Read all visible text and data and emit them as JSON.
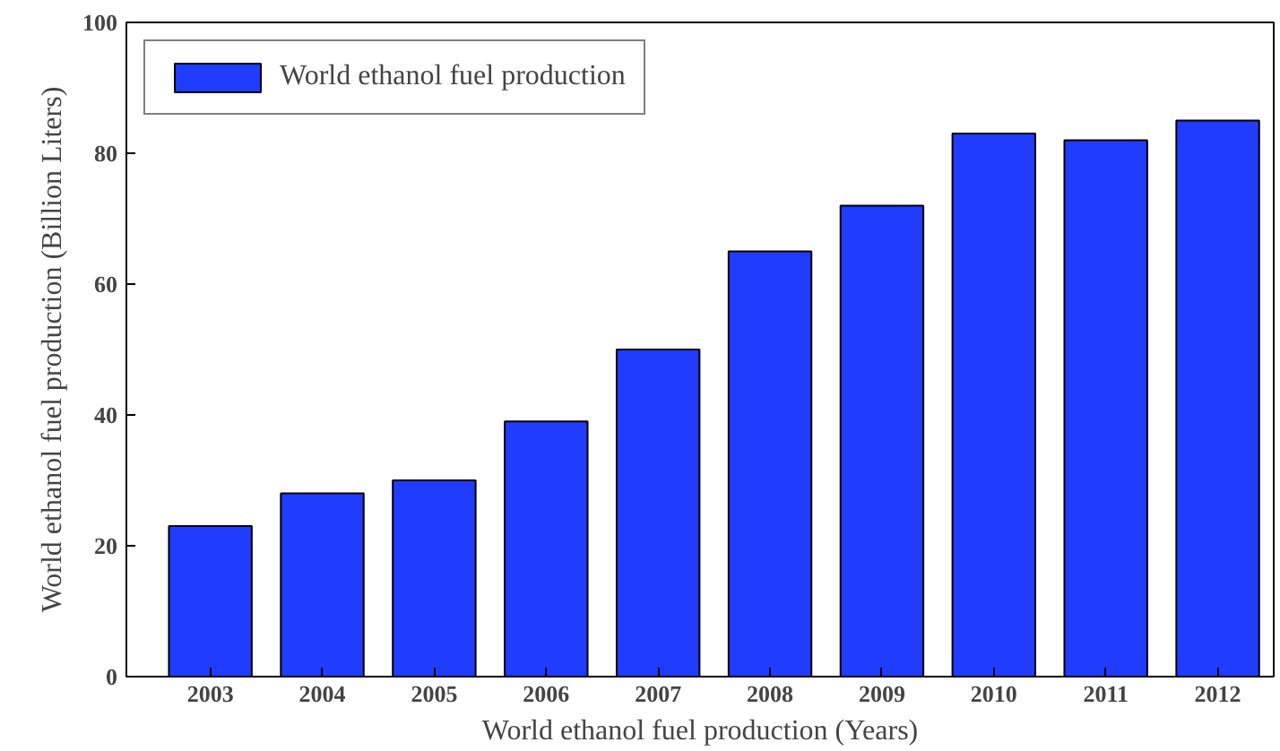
{
  "chart_data": {
    "type": "bar",
    "xlabel": "World ethanol fuel production (Years)",
    "ylabel": "World ethanol fuel production (Billion Liters)",
    "categories": [
      "2003",
      "2004",
      "2005",
      "2006",
      "2007",
      "2008",
      "2009",
      "2010",
      "2011",
      "2012"
    ],
    "series": [
      {
        "name": "World ethanol fuel production",
        "color": "#1f3cff",
        "values": [
          23,
          28,
          30,
          39,
          50,
          65,
          72,
          83,
          82,
          85
        ]
      }
    ],
    "ylim": [
      0,
      100
    ],
    "yticks": [
      0,
      20,
      40,
      60,
      80,
      100
    ],
    "grid": false,
    "legend": "top left"
  }
}
